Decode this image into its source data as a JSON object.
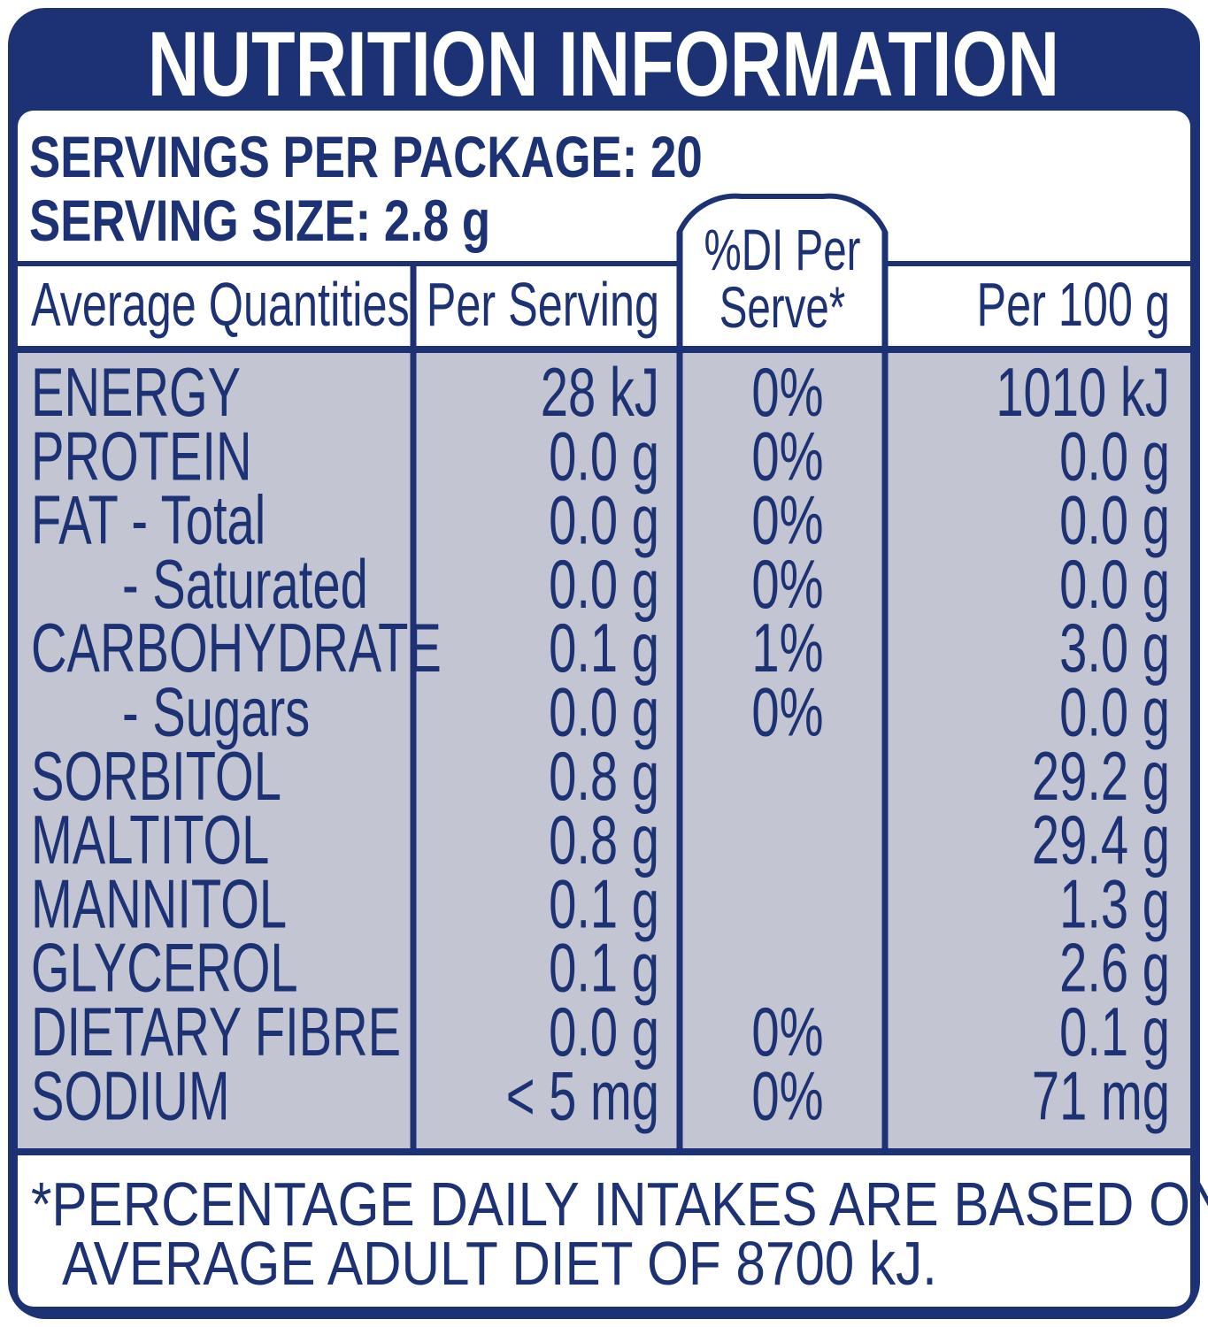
{
  "header": {
    "title": "NUTRITION INFORMATION",
    "servings_per_package": "SERVINGS PER PACKAGE: 20",
    "serving_size": "SERVING SIZE: 2.8 g"
  },
  "table": {
    "columns": [
      "Average Quantities",
      "Per Serving",
      [
        "%DI Per",
        "Serve*"
      ],
      "Per 100 g"
    ],
    "rows": [
      [
        "ENERGY",
        "28 kJ",
        "0%",
        "1010 kJ"
      ],
      [
        "PROTEIN",
        "0.0 g",
        "0%",
        "0.0 g"
      ],
      [
        "FAT - Total",
        "0.0 g",
        "0%",
        "0.0 g"
      ],
      [
        "- Saturated",
        "0.0 g",
        "0%",
        "0.0 g"
      ],
      [
        "CARBOHYDRATE",
        "0.1 g",
        "1%",
        "3.0 g"
      ],
      [
        "- Sugars",
        "0.0 g",
        "0%",
        "0.0 g"
      ],
      [
        "SORBITOL",
        "0.8 g",
        null,
        "29.2 g"
      ],
      [
        "MALTITOL",
        "0.8 g",
        null,
        "29.4 g"
      ],
      [
        "MANNITOL",
        "0.1 g",
        null,
        "1.3 g"
      ],
      [
        "GLYCEROL",
        "0.1 g",
        null,
        "2.6 g"
      ],
      [
        "DIETARY FIBRE",
        "0.0 g",
        "0%",
        "0.1 g"
      ],
      [
        "SODIUM",
        "< 5 mg",
        "0%",
        "71 mg"
      ]
    ]
  },
  "footnote": [
    "*PERCENTAGE DAILY INTAKES ARE BASED ON AN",
    "AVERAGE ADULT DIET OF 8700 kJ."
  ]
}
